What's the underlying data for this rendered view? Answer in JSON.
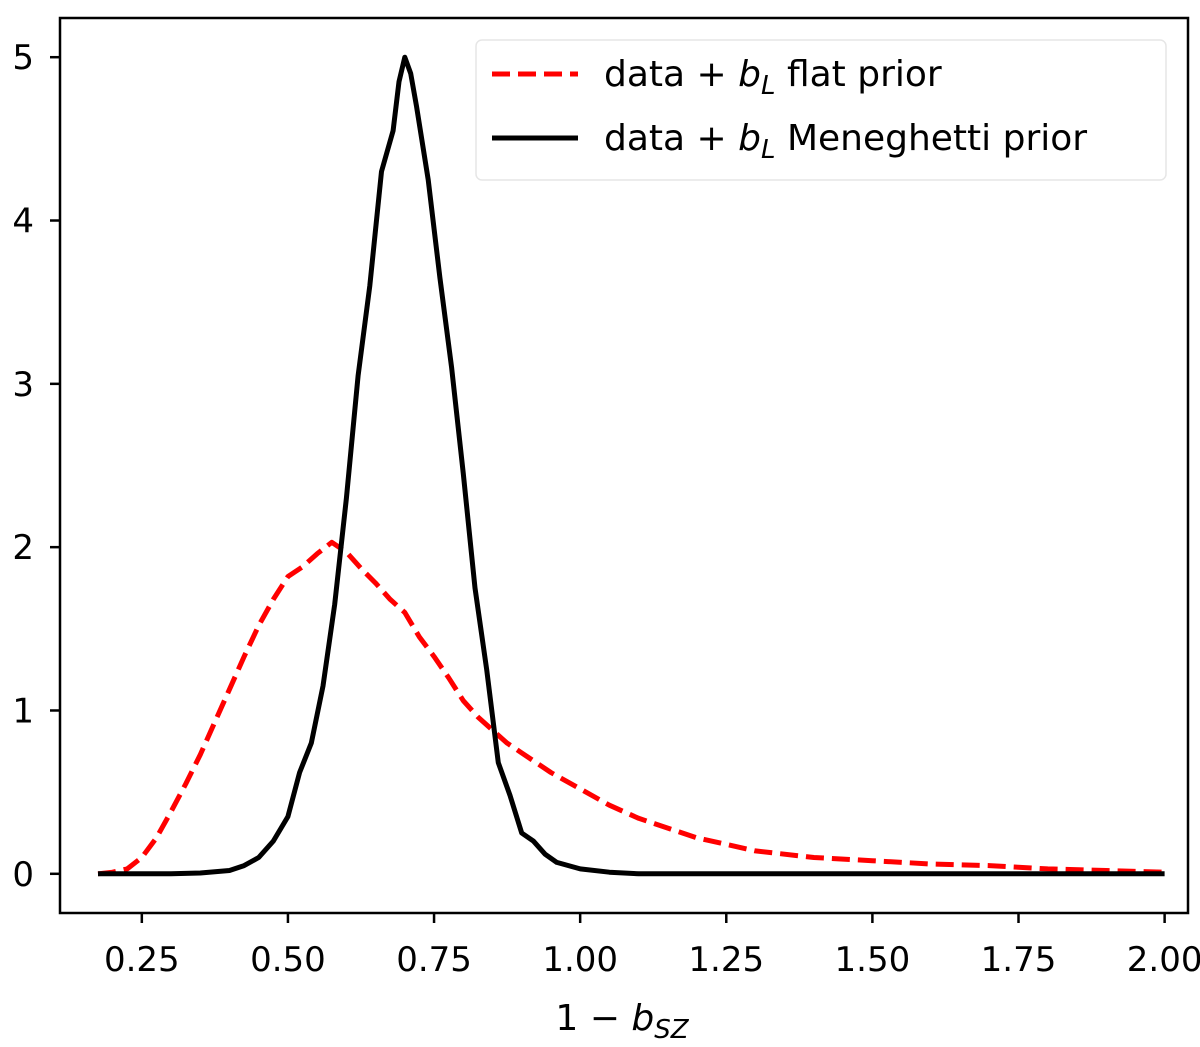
{
  "chart_data": {
    "type": "line",
    "title": "",
    "xlabel": "1 − b_SZ",
    "xlabel_parts": {
      "prefix": "1 − ",
      "base": "b",
      "sub": "SZ"
    },
    "ylabel": "",
    "xlim": [
      0.11,
      2.04
    ],
    "ylim": [
      -0.24,
      5.24
    ],
    "xticks": [
      0.25,
      0.5,
      0.75,
      1.0,
      1.25,
      1.5,
      1.75,
      2.0
    ],
    "xtick_labels": [
      "0.25",
      "0.50",
      "0.75",
      "1.00",
      "1.25",
      "1.50",
      "1.75",
      "2.00"
    ],
    "yticks": [
      0,
      1,
      2,
      3,
      4,
      5
    ],
    "ytick_labels": [
      "0",
      "1",
      "2",
      "3",
      "4",
      "5"
    ],
    "grid": false,
    "legend_position": "top-right",
    "series": [
      {
        "name": "data + b_L flat prior",
        "label_parts": {
          "prefix": "data + ",
          "base": "b",
          "sub": "L",
          "suffix": " flat prior"
        },
        "color": "#ff0000",
        "style": "dashed",
        "x": [
          0.175,
          0.2,
          0.225,
          0.25,
          0.275,
          0.3,
          0.325,
          0.35,
          0.375,
          0.4,
          0.425,
          0.45,
          0.475,
          0.5,
          0.525,
          0.55,
          0.575,
          0.6,
          0.625,
          0.65,
          0.675,
          0.7,
          0.725,
          0.75,
          0.775,
          0.8,
          0.825,
          0.85,
          0.875,
          0.9,
          0.95,
          1.0,
          1.05,
          1.1,
          1.2,
          1.3,
          1.4,
          1.5,
          1.6,
          1.7,
          1.8,
          1.9,
          2.0
        ],
        "y": [
          0.0,
          0.01,
          0.03,
          0.1,
          0.22,
          0.38,
          0.55,
          0.73,
          0.93,
          1.13,
          1.33,
          1.52,
          1.68,
          1.82,
          1.88,
          1.96,
          2.03,
          1.97,
          1.87,
          1.78,
          1.68,
          1.6,
          1.45,
          1.33,
          1.2,
          1.06,
          0.96,
          0.88,
          0.8,
          0.74,
          0.62,
          0.52,
          0.42,
          0.34,
          0.22,
          0.14,
          0.1,
          0.08,
          0.06,
          0.05,
          0.03,
          0.02,
          0.01
        ]
      },
      {
        "name": "data + b_L Meneghetti prior",
        "label_parts": {
          "prefix": "data + ",
          "base": "b",
          "sub": "L",
          "suffix": " Meneghetti prior"
        },
        "color": "#000000",
        "style": "solid",
        "x": [
          0.175,
          0.3,
          0.35,
          0.4,
          0.425,
          0.45,
          0.475,
          0.5,
          0.52,
          0.54,
          0.56,
          0.58,
          0.6,
          0.62,
          0.64,
          0.66,
          0.68,
          0.69,
          0.7,
          0.71,
          0.72,
          0.74,
          0.76,
          0.78,
          0.8,
          0.82,
          0.84,
          0.86,
          0.88,
          0.9,
          0.92,
          0.94,
          0.96,
          1.0,
          1.05,
          1.1,
          2.0
        ],
        "y": [
          0.0,
          0.0,
          0.005,
          0.02,
          0.05,
          0.1,
          0.2,
          0.35,
          0.62,
          0.8,
          1.15,
          1.65,
          2.3,
          3.05,
          3.6,
          4.3,
          4.55,
          4.85,
          5.0,
          4.9,
          4.7,
          4.25,
          3.65,
          3.1,
          2.45,
          1.75,
          1.25,
          0.68,
          0.48,
          0.25,
          0.2,
          0.12,
          0.07,
          0.03,
          0.01,
          0.0,
          0.0
        ]
      }
    ]
  }
}
